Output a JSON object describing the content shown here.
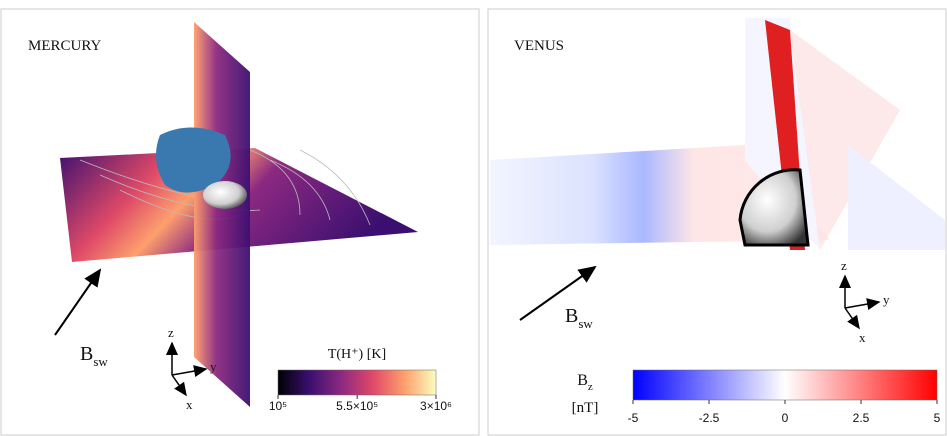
{
  "panels": [
    {
      "title": "MERCURY",
      "bsw": {
        "main": "B",
        "sub": "sw"
      },
      "axes": {
        "z": "z",
        "y": "y",
        "x": "x"
      },
      "colorbar": {
        "label": "T(H⁺) [K]",
        "scale": "log",
        "lim": [
          100000,
          3000000
        ],
        "colors": [
          "#000004",
          "#3b0f70",
          "#8c2981",
          "#de4968",
          "#fe9f6d",
          "#fcfdbf"
        ],
        "ticks": [
          {
            "value": 100000,
            "label": "10⁵"
          },
          {
            "value": 550000,
            "label": "5.5×10⁵"
          },
          {
            "value": 3000000,
            "label": "3×10⁶"
          }
        ]
      }
    },
    {
      "title": "VENUS",
      "bsw": {
        "main": "B",
        "sub": "sw"
      },
      "axes": {
        "z": "z",
        "y": "y",
        "x": "x"
      },
      "colorbar": {
        "label": {
          "main": "B",
          "sub": "z",
          "unit": "[nT]"
        },
        "scale": "linear",
        "lim": [
          -5,
          5
        ],
        "colors": [
          "#0000ff",
          "#ffffff",
          "#ff0000"
        ],
        "ticks": [
          -5,
          -2.5,
          0,
          2.5,
          5
        ]
      }
    }
  ]
}
